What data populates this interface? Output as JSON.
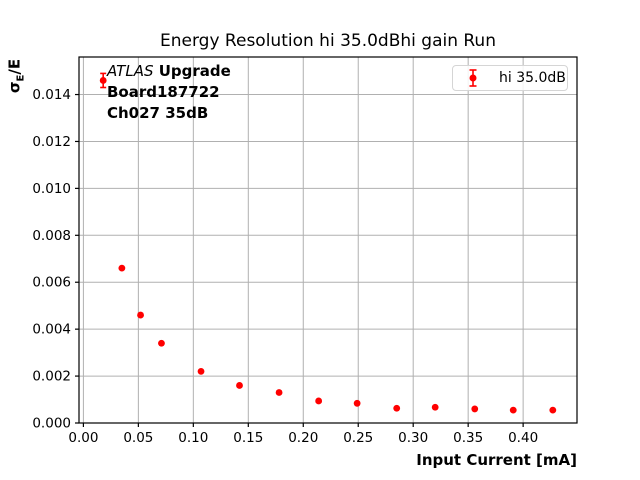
{
  "title": "Energy Resolution hi 35.0dBhi gain Run",
  "xlabel": "Input Current [mA]",
  "ylabel": {
    "sigma": "σ",
    "sub": "E",
    "rest": "/E"
  },
  "annotation": {
    "line1_italic": "ATLAS",
    "line1_bold": " Upgrade",
    "line2": "Board187722",
    "line3": "Ch027 35dB"
  },
  "legend": {
    "label": "hi 35.0dB"
  },
  "colors": {
    "series": "#ff0000",
    "grid": "#b0b0b0",
    "frame": "#000000",
    "tick_text": "#000000",
    "background": "#ffffff",
    "legend_border": "#d5d5d5"
  },
  "chart_data": {
    "type": "scatter",
    "title": "Energy Resolution hi 35.0dBhi gain Run",
    "xlabel": "Input Current [mA]",
    "ylabel": "σE/E",
    "grid": true,
    "legend_position": "upper right",
    "xlim": [
      -0.004,
      0.449
    ],
    "ylim": [
      0,
      0.0156
    ],
    "xticks": [
      0.0,
      0.05,
      0.1,
      0.15,
      0.2,
      0.25,
      0.3,
      0.35,
      0.4
    ],
    "yticks": [
      0.0,
      0.002,
      0.004,
      0.006,
      0.008,
      0.01,
      0.012,
      0.014
    ],
    "x_tick_decimals": 2,
    "y_tick_decimals": 3,
    "series": [
      {
        "name": "hi 35.0dB",
        "color": "#ff0000",
        "marker": "circle-with-errorbar",
        "x": [
          0.018,
          0.035,
          0.052,
          0.071,
          0.107,
          0.142,
          0.178,
          0.214,
          0.249,
          0.285,
          0.32,
          0.356,
          0.391,
          0.427
        ],
        "y": [
          0.0146,
          0.0066,
          0.0046,
          0.0034,
          0.0022,
          0.0016,
          0.0013,
          0.00094,
          0.00084,
          0.00063,
          0.00067,
          0.0006,
          0.00055,
          0.00055
        ],
        "yerr": [
          0.0003,
          0,
          0,
          0,
          0,
          0,
          0,
          0,
          0,
          0,
          0,
          0,
          0,
          0
        ]
      }
    ]
  }
}
